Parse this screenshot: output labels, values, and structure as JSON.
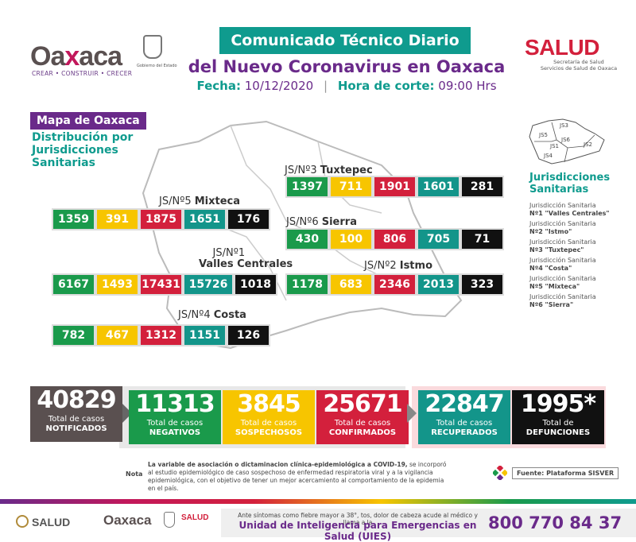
{
  "header": {
    "logo_text_1": "Oa",
    "logo_text_x": "x",
    "logo_text_2": "aca",
    "logo_tagline": "CREAR • CONSTRUIR • CRECER",
    "gobierno_text": "Gobierno del Estado",
    "title_line1": "Comunicado Técnico Diario",
    "title_line2": "del Nuevo Coronavirus en Oaxaca",
    "fecha_label": "Fecha:",
    "fecha_value": "10/12/2020",
    "hora_label": "Hora de corte:",
    "hora_value": "09:00 Hrs",
    "salud_logo": "SALUD",
    "salud_sub_1": "Secretaría de Salud",
    "salud_sub_2": "Servicios de Salud de Oaxaca"
  },
  "map_section": {
    "title": "Mapa de Oaxaca",
    "subtitle": "Distribución por Jurisdicciones Sanitarias"
  },
  "jurisdictions": [
    {
      "key": "tuxtepec",
      "prefix": "JS/Nº3",
      "name": "Tuxtepec",
      "values": [
        "1397",
        "711",
        "1901",
        "1601",
        "281"
      ]
    },
    {
      "key": "mixteca",
      "prefix": "JS/Nº5",
      "name": "Mixteca",
      "values": [
        "1359",
        "391",
        "1875",
        "1651",
        "176"
      ]
    },
    {
      "key": "sierra",
      "prefix": "JS/Nº6",
      "name": "Sierra",
      "values": [
        "430",
        "100",
        "806",
        "705",
        "71"
      ]
    },
    {
      "key": "valles",
      "prefix": "JS/Nº1",
      "name": "Valles Centrales",
      "values": [
        "6167",
        "1493",
        "17431",
        "15726",
        "1018"
      ]
    },
    {
      "key": "istmo",
      "prefix": "JS/Nº2",
      "name": "Istmo",
      "values": [
        "1178",
        "683",
        "2346",
        "2013",
        "323"
      ]
    },
    {
      "key": "costa",
      "prefix": "JS/Nº4",
      "name": "Costa",
      "values": [
        "782",
        "467",
        "1312",
        "1151",
        "126"
      ]
    }
  ],
  "mini_map_labels": [
    "JS3",
    "JS5",
    "JS6",
    "JS1",
    "JS2",
    "JS4"
  ],
  "legend": {
    "title": "Jurisdicciones Sanitarias",
    "items": [
      {
        "line1": "Jurisdicción Sanitaria",
        "line2": "Nº1 \"Valles Centrales\""
      },
      {
        "line1": "Jurisdicción Sanitaria",
        "line2": "Nº2 \"Istmo\""
      },
      {
        "line1": "Jurisdicción Sanitaria",
        "line2": "Nº3 \"Tuxtepec\""
      },
      {
        "line1": "Jurisdicción Sanitaria",
        "line2": "Nº4 \"Costa\""
      },
      {
        "line1": "Jurisdicción Sanitaria",
        "line2": "Nº5 \"Mixteca\""
      },
      {
        "line1": "Jurisdicción Sanitaria",
        "line2": "Nº6 \"Sierra\""
      }
    ]
  },
  "totals": [
    {
      "key": "notificados",
      "num": "40829",
      "l1": "Total de casos",
      "l2": "NOTIFICADOS",
      "color": "#5a5050"
    },
    {
      "key": "negativos",
      "num": "11313",
      "l1": "Total de casos",
      "l2": "NEGATIVOS",
      "color": "#1a9a4b"
    },
    {
      "key": "sospechosos",
      "num": "3845",
      "l1": "Total de casos",
      "l2": "SOSPECHOSOS",
      "color": "#f7c500"
    },
    {
      "key": "confirmados",
      "num": "25671",
      "l1": "Total de casos",
      "l2": "CONFIRMADOS",
      "color": "#d3203c"
    },
    {
      "key": "recuperados",
      "num": "22847",
      "l1": "Total de casos",
      "l2": "RECUPERADOS",
      "color": "#13958a"
    },
    {
      "key": "defunciones",
      "num": "1995*",
      "l1": "Total de",
      "l2": "DEFUNCIONES",
      "color": "#111111"
    }
  ],
  "note": {
    "label": "Nota",
    "text_bold": "La variable de asociación o dictaminacion clínica-epidemiológica a COVID-19,",
    "text": " se incorporó al estudio epidemiológico de caso sospechoso de enfermedad respiratoria viral y a la vigilancia epidemiológica, con el objetivo de tener un mejor acercamiento al comportamiento de la epidemia en el país.",
    "fuente": "Fuente: Plataforma SISVER"
  },
  "footer": {
    "salud": "SALUD",
    "oaxaca": "Oaxaca",
    "salud2": "SALUD",
    "text1": "Ante síntomas como fiebre mayor a 38°, tos, dolor de cabeza acude al médico y llama a la",
    "text2": "Unidad de Inteligencia para Emergencias en Salud (UIES)",
    "phone": "800 770 84 37"
  }
}
